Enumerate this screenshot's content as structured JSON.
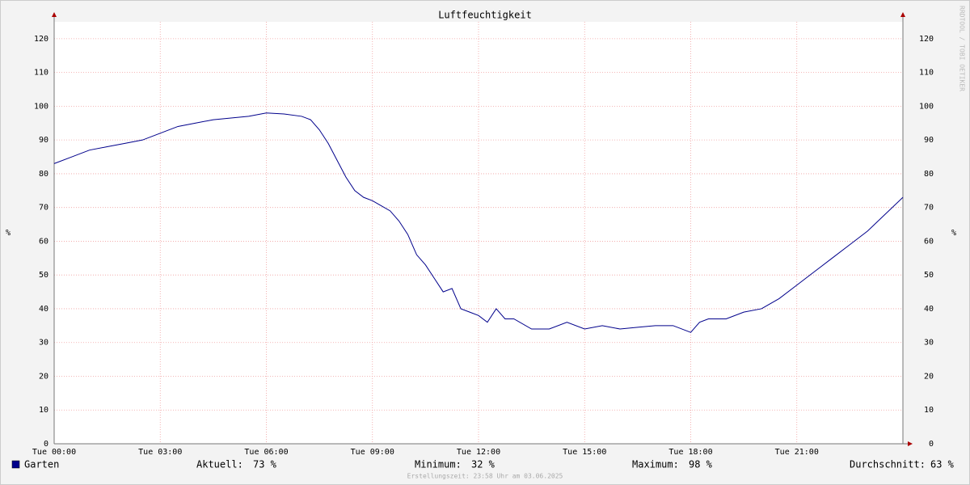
{
  "chart_data": {
    "type": "line",
    "title": "Luftfeuchtigkeit",
    "y_label": "%",
    "y2_label": "%",
    "x": [
      0,
      0.5,
      1,
      1.5,
      2,
      2.5,
      3,
      3.5,
      4,
      4.5,
      5,
      5.5,
      6,
      6.5,
      7,
      7.25,
      7.5,
      7.75,
      8,
      8.25,
      8.5,
      8.75,
      9,
      9.5,
      9.75,
      10,
      10.25,
      10.5,
      10.75,
      11,
      11.25,
      11.5,
      11.75,
      12,
      12.25,
      12.5,
      12.75,
      13,
      13.5,
      14,
      14.5,
      15,
      15.5,
      16,
      16.5,
      17,
      17.5,
      18,
      18.25,
      18.5,
      19,
      19.5,
      20,
      20.5,
      21,
      21.5,
      22,
      22.5,
      23,
      23.5,
      24
    ],
    "series": [
      {
        "name": "Garten",
        "color": "#00008b",
        "values": [
          83,
          85,
          87,
          88,
          89,
          90,
          92,
          94,
          95,
          96,
          96.5,
          97,
          98,
          97.7,
          97,
          96,
          93,
          89,
          84,
          79,
          75,
          73,
          72,
          69,
          66,
          62,
          56,
          53,
          49,
          45,
          46,
          40,
          39,
          38,
          36,
          40,
          37,
          37,
          34,
          34,
          36,
          34,
          35,
          34,
          34.5,
          35,
          35,
          33,
          36,
          37,
          37,
          39,
          40,
          43,
          47,
          51,
          55,
          59,
          63,
          68,
          73
        ]
      }
    ],
    "xlim": [
      0,
      24
    ],
    "xticks": [
      {
        "value": 0,
        "label": "Tue 00:00"
      },
      {
        "value": 3,
        "label": "Tue 03:00"
      },
      {
        "value": 6,
        "label": "Tue 06:00"
      },
      {
        "value": 9,
        "label": "Tue 09:00"
      },
      {
        "value": 12,
        "label": "Tue 12:00"
      },
      {
        "value": 15,
        "label": "Tue 15:00"
      },
      {
        "value": 18,
        "label": "Tue 18:00"
      },
      {
        "value": 21,
        "label": "Tue 21:00"
      }
    ],
    "ylim": [
      0,
      125
    ],
    "yticks": [
      0,
      10,
      20,
      30,
      40,
      50,
      60,
      70,
      80,
      90,
      100,
      110,
      120
    ],
    "grid": true,
    "stats": [
      {
        "label": "Aktuell:",
        "value": "73 %"
      },
      {
        "label": "Minimum:",
        "value": "32 %"
      },
      {
        "label": "Maximum:",
        "value": "98 %"
      },
      {
        "label": "Durchschnitt:",
        "value": "63 %"
      }
    ],
    "footer": "Erstellungszeit: 23:58 Uhr am 03.06.2025",
    "watermark": "RRDTOOL / TOBI OETIKER"
  }
}
